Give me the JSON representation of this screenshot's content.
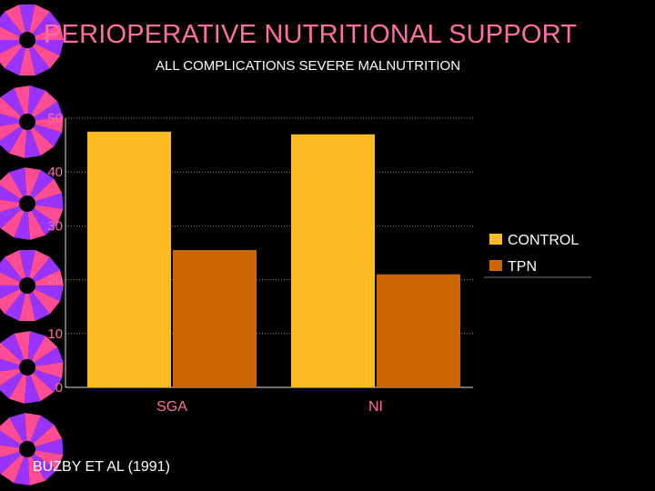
{
  "slide": {
    "title": "PERIOPERATIVE NUTRITIONAL SUPPORT",
    "source": "BUZBY ET AL (1991)"
  },
  "colors": {
    "background": "#000000",
    "title": "#ff6fa6",
    "axis_ticks": "#ff6fa6",
    "control": "#ffbb22",
    "tpn": "#cc6600",
    "text": "#ffffff",
    "decoration_a": "#9933ff",
    "decoration_b": "#ff4d94"
  },
  "chart_data": {
    "type": "bar",
    "title": "ALL COMPLICATIONS  SEVERE MALNUTRITION",
    "xlabel": "",
    "ylabel": "",
    "categories": [
      "SGA",
      "NI"
    ],
    "series": [
      {
        "name": "CONTROL",
        "values": [
          47.5,
          47
        ]
      },
      {
        "name": "TPN",
        "values": [
          25.5,
          21
        ]
      }
    ],
    "ylim": [
      0,
      50
    ],
    "yticks": [
      "0",
      "10",
      "20",
      "30",
      "40",
      "50"
    ],
    "grid": true,
    "legend": "right"
  }
}
